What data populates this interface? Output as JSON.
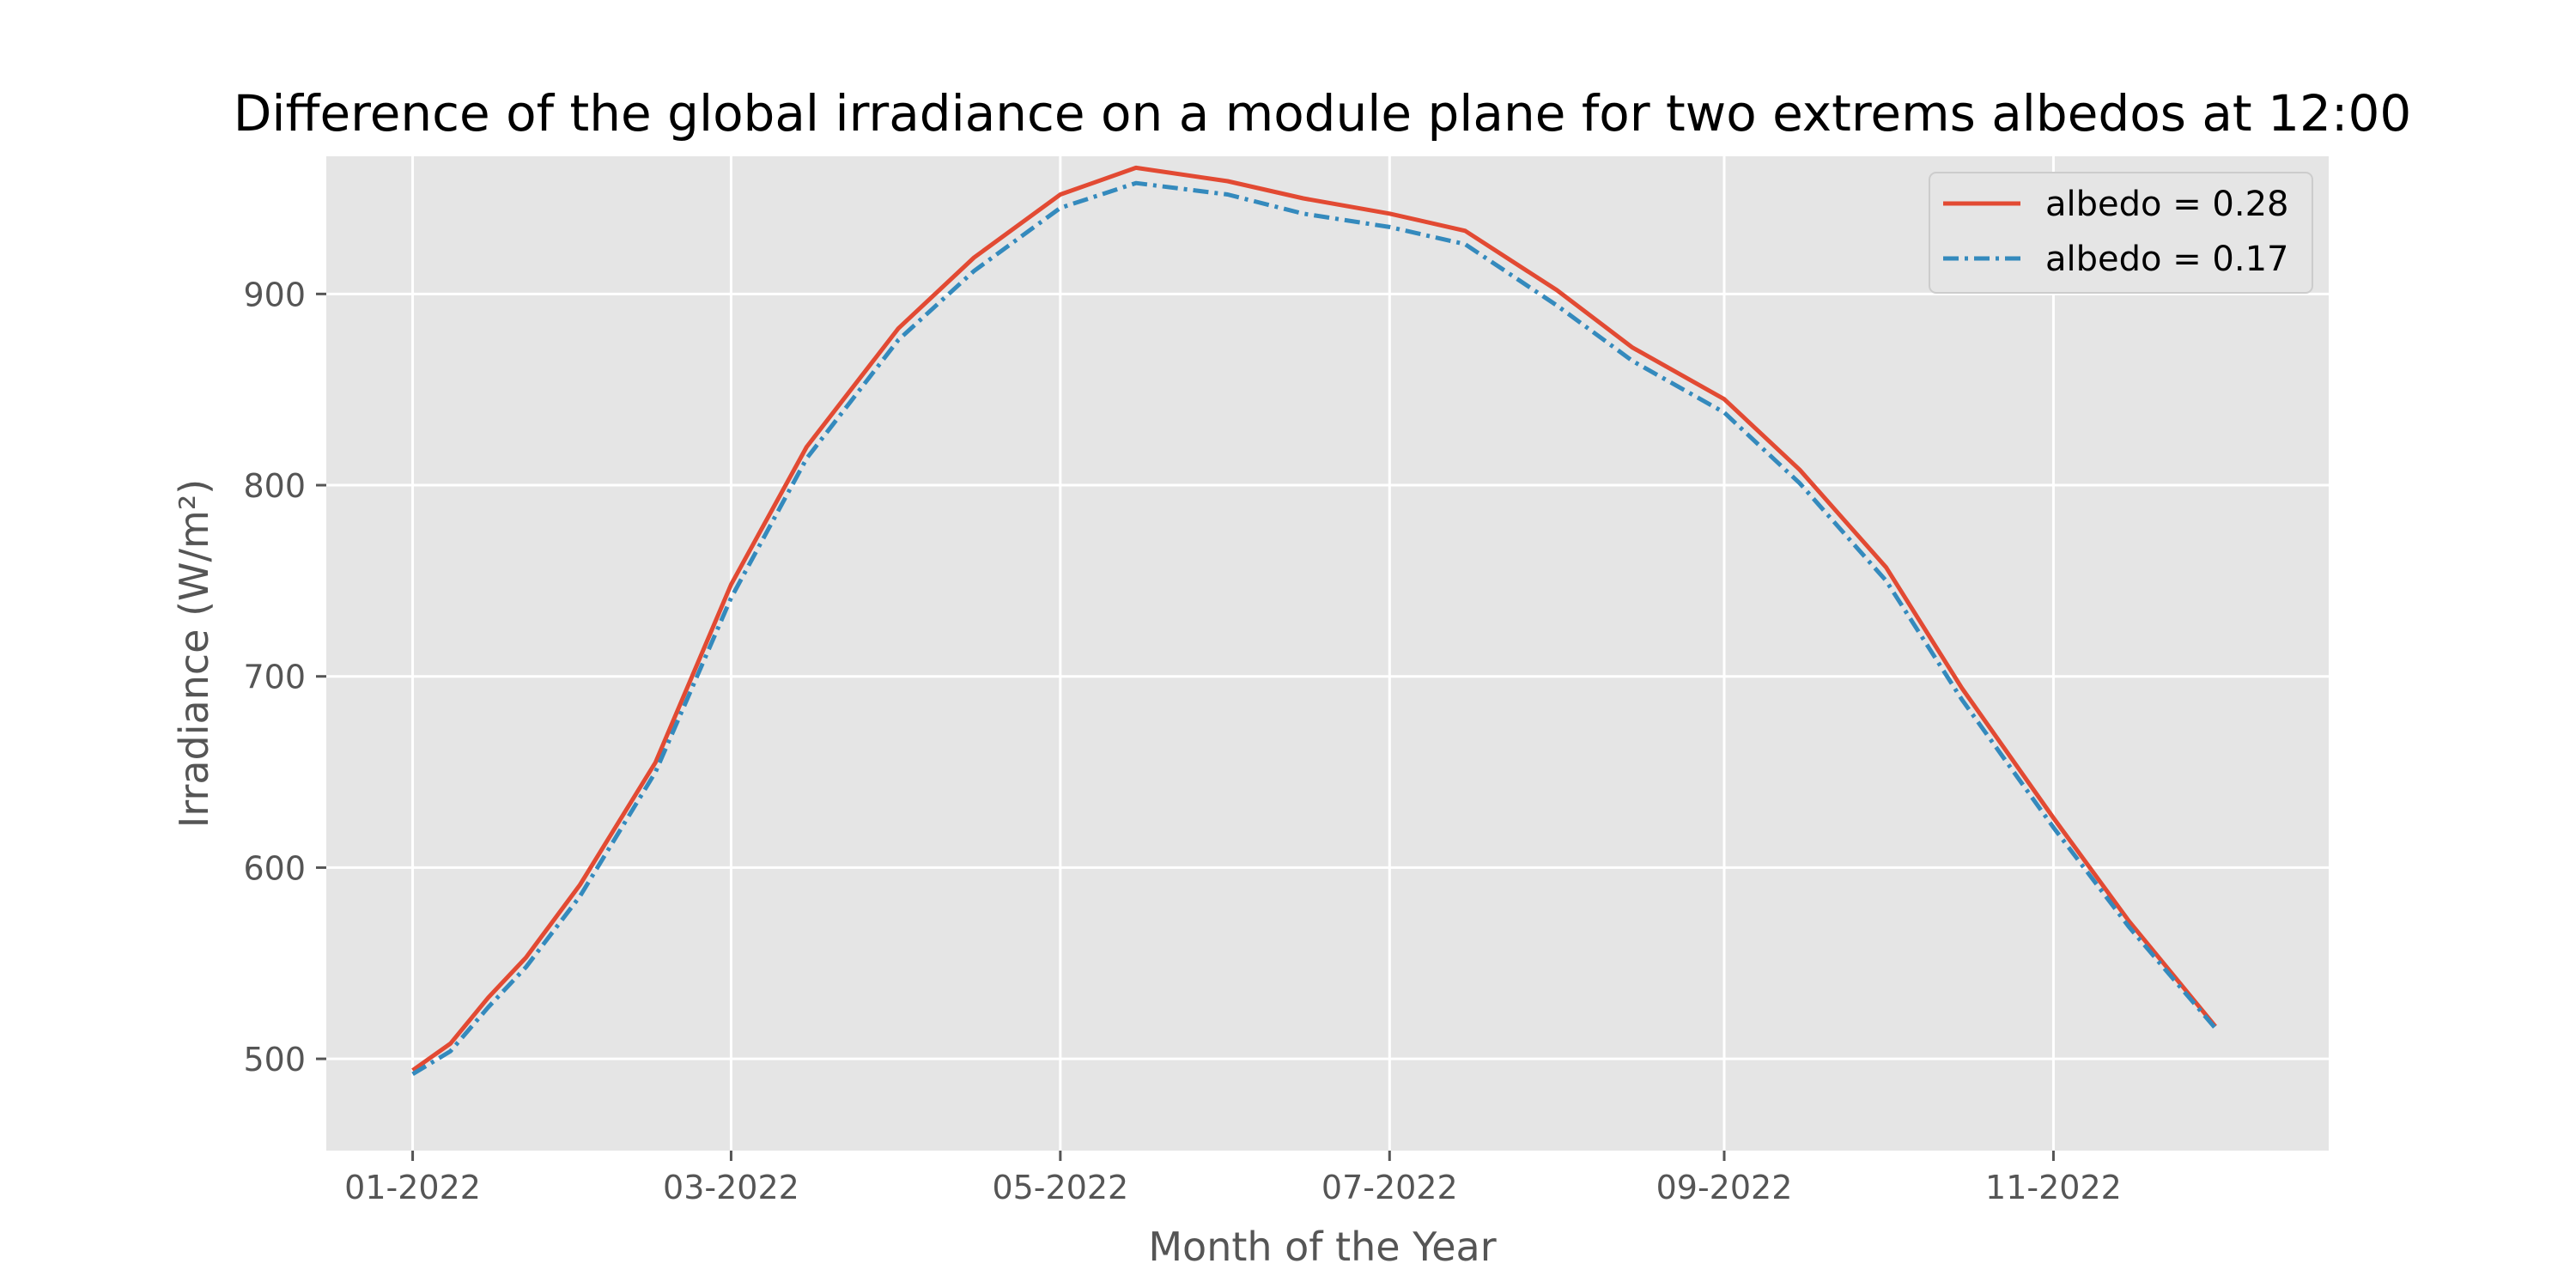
{
  "chart_data": {
    "type": "line",
    "title": "Difference of the global irradiance on a module plane for two extrems albedos at 12:00",
    "xlabel": "Month of the Year",
    "ylabel": "Irradiance (W/m²)",
    "x_axis": {
      "kind": "date",
      "min": "2021-12-16",
      "max": "2022-12-22",
      "ticks": [
        {
          "value": "2022-01-01",
          "label": "01-2022"
        },
        {
          "value": "2022-03-01",
          "label": "03-2022"
        },
        {
          "value": "2022-05-01",
          "label": "05-2022"
        },
        {
          "value": "2022-07-01",
          "label": "07-2022"
        },
        {
          "value": "2022-09-01",
          "label": "09-2022"
        },
        {
          "value": "2022-11-01",
          "label": "11-2022"
        }
      ]
    },
    "ylim": [
      452,
      972
    ],
    "yticks": [
      500,
      600,
      700,
      800,
      900
    ],
    "grid": true,
    "legend_position": "top-right",
    "colors": {
      "background": "#E5E5E5",
      "grid": "#FFFFFF",
      "series_1": "#E24A33",
      "series_2": "#348ABD"
    },
    "series": [
      {
        "name": "albedo = 0.28",
        "style": "solid",
        "x": [
          "2022-01-01",
          "2022-01-08",
          "2022-01-15",
          "2022-01-22",
          "2022-02-01",
          "2022-02-15",
          "2022-03-01",
          "2022-03-15",
          "2022-04-01",
          "2022-04-15",
          "2022-05-01",
          "2022-05-15",
          "2022-06-01",
          "2022-06-15",
          "2022-07-01",
          "2022-07-15",
          "2022-08-01",
          "2022-08-15",
          "2022-09-01",
          "2022-09-15",
          "2022-10-01",
          "2022-10-15",
          "2022-11-01",
          "2022-11-15",
          "2022-12-01"
        ],
        "values": [
          494,
          508,
          532,
          553,
          591,
          655,
          748,
          820,
          882,
          919,
          952,
          966,
          959,
          950,
          942,
          933,
          902,
          872,
          845,
          808,
          757,
          694,
          626,
          572,
          517
        ]
      },
      {
        "name": "albedo = 0.17",
        "style": "dashdot",
        "x": [
          "2022-01-01",
          "2022-01-08",
          "2022-01-15",
          "2022-01-22",
          "2022-02-01",
          "2022-02-15",
          "2022-03-01",
          "2022-03-15",
          "2022-04-01",
          "2022-04-15",
          "2022-05-01",
          "2022-05-15",
          "2022-06-01",
          "2022-06-15",
          "2022-07-01",
          "2022-07-15",
          "2022-08-01",
          "2022-08-15",
          "2022-09-01",
          "2022-09-15",
          "2022-10-01",
          "2022-10-15",
          "2022-11-01",
          "2022-11-15",
          "2022-12-01"
        ],
        "values": [
          492,
          504,
          527,
          548,
          585,
          650,
          741,
          814,
          876,
          912,
          945,
          958,
          952,
          942,
          935,
          926,
          894,
          865,
          838,
          801,
          750,
          688,
          621,
          569,
          516
        ]
      }
    ]
  }
}
